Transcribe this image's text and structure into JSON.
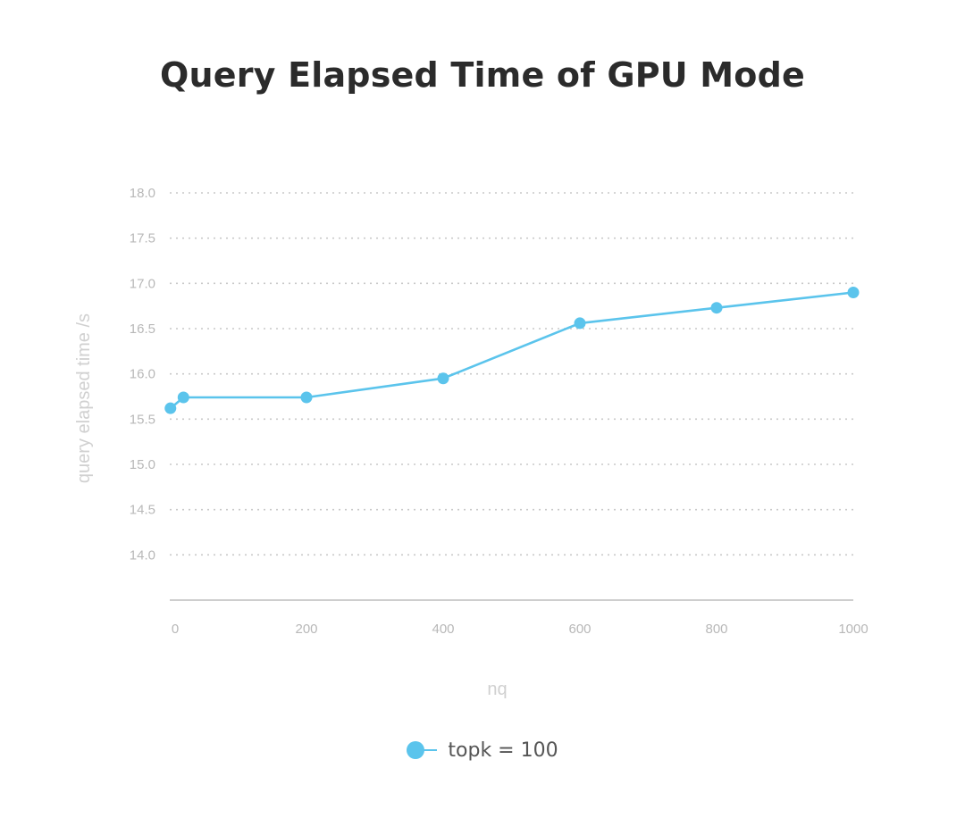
{
  "chart_data": {
    "type": "line",
    "title": "Query Elapsed Time of GPU Mode",
    "xlabel": "nq",
    "ylabel": "query elapsed time /s",
    "xlim": [
      0,
      1000
    ],
    "ylim": [
      13.5,
      18.0
    ],
    "x_ticks": [
      "0",
      "200",
      "400",
      "600",
      "800",
      "1000"
    ],
    "x_tick_values": [
      0,
      200,
      400,
      600,
      800,
      1000
    ],
    "y_ticks": [
      "18.0",
      "17.5",
      "17.0",
      "16.5",
      "16.0",
      "15.5",
      "15.0",
      "14.5",
      "14.0"
    ],
    "y_tick_values": [
      18.0,
      17.5,
      17.0,
      16.5,
      16.0,
      15.5,
      15.0,
      14.5,
      14.0
    ],
    "grid": "horizontal dotted",
    "legend_position": "bottom-center",
    "series": [
      {
        "name": "topk = 100",
        "color": "#5bc4ec",
        "points": [
          {
            "x": 1,
            "y": 15.62
          },
          {
            "x": 20,
            "y": 15.74
          },
          {
            "x": 200,
            "y": 15.74
          },
          {
            "x": 400,
            "y": 15.95
          },
          {
            "x": 600,
            "y": 16.56
          },
          {
            "x": 800,
            "y": 16.73
          },
          {
            "x": 1000,
            "y": 16.9
          }
        ]
      }
    ]
  }
}
